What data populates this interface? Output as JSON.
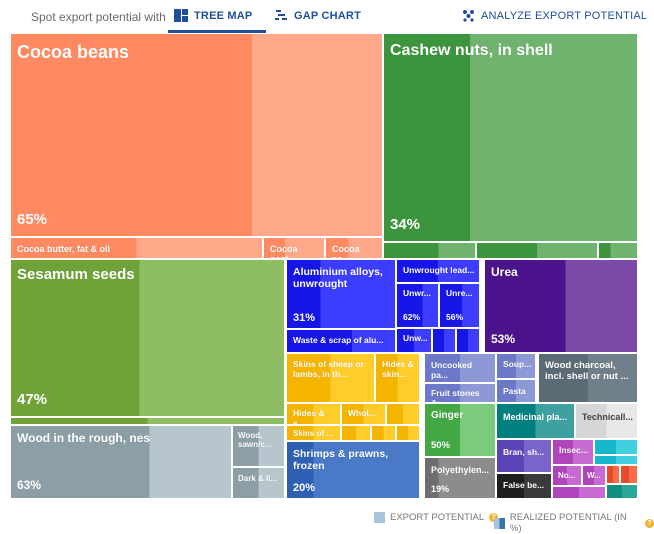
{
  "header": {
    "spot_label": "Spot export potential with",
    "tab_treemap": "TREE MAP",
    "tab_gap": "GAP CHART",
    "analyze": "ANALYZE EXPORT POTENTIAL"
  },
  "legend": {
    "export_potential": "EXPORT POTENTIAL",
    "realized_potential": "REALIZED POTENTIAL (IN %)"
  },
  "cells": {
    "cocoa_beans": {
      "label": "Cocoa beans",
      "pct": "65%",
      "realized": 0.65,
      "light": "#ffa98a",
      "dark": "#ff8a62"
    },
    "cocoa_butter": {
      "label": "Cocoa butter, fat & oil",
      "light": "#ffa98a",
      "dark": "#ff8a62"
    },
    "cocoa_paste": {
      "label": "Cocoa past...",
      "light": "#ffa98a",
      "dark": "#ff8a62"
    },
    "cocoa_powder": {
      "label": "Cocoa pa...",
      "light": "#ffa98a",
      "dark": "#ff8a62"
    },
    "cashew": {
      "label": "Cashew nuts, in shell",
      "pct": "34%",
      "realized": 0.34,
      "light": "#6fb36f",
      "dark": "#3c953c"
    },
    "sesamum": {
      "label": "Sesamum seeds",
      "pct": "47%",
      "realized": 0.47,
      "light": "#8fbd63",
      "dark": "#6fa33a"
    },
    "wood_rough": {
      "label": "Wood in the rough, nes",
      "pct": "63%",
      "realized": 0.63,
      "light": "#b7c6cc",
      "dark": "#8c9fa7"
    },
    "wood_sawn": {
      "label": "Wood, sawn/c...",
      "light": "#b7c6cc",
      "dark": "#8c9fa7"
    },
    "dark_li": {
      "label": "Dark & li...",
      "light": "#b7c6cc",
      "dark": "#8c9fa7"
    },
    "aluminium": {
      "label": "Aluminium alloys, unwrought",
      "pct": "31%",
      "realized": 0.31,
      "light": "#3d3dff",
      "dark": "#1616e6"
    },
    "waste_alu": {
      "label": "Waste & scrap of alu...",
      "light": "#3d3dff",
      "dark": "#1616e6"
    },
    "unwrought_lead": {
      "label": "Unwrought lead...",
      "light": "#3d3dff",
      "dark": "#1616e6"
    },
    "unwr1": {
      "label": "Unwr...",
      "pct": "62%",
      "realized": 0.62,
      "light": "#3d3dff",
      "dark": "#1616e6"
    },
    "unre": {
      "label": "Unre...",
      "pct": "56%",
      "realized": 0.56,
      "light": "#3d3dff",
      "dark": "#1616e6"
    },
    "unw": {
      "label": "Unw...",
      "light": "#3d3dff",
      "dark": "#1616e6"
    },
    "urea": {
      "label": "Urea",
      "pct": "53%",
      "realized": 0.53,
      "light": "#7b4aa8",
      "dark": "#4b148c"
    },
    "skins": {
      "label": "Skins of sheep or lambs, in th...",
      "light": "#ffcc2a",
      "dark": "#f4b400"
    },
    "hides1": {
      "label": "Hides & skin...",
      "light": "#ffcc2a",
      "dark": "#f4b400"
    },
    "hides2": {
      "label": "Hides & s...",
      "light": "#ffcc2a",
      "dark": "#f4b400"
    },
    "whol": {
      "label": "Whol...",
      "light": "#ffcc2a",
      "dark": "#f4b400"
    },
    "skins2": {
      "label": "Skins of ...",
      "light": "#ffcc2a",
      "dark": "#f4b400"
    },
    "shrimps": {
      "label": "Shrimps & prawns, frozen",
      "pct": "20%",
      "realized": 0.2,
      "light": "#4a79c8",
      "dark": "#2f5fb3"
    },
    "uncooked": {
      "label": "Uncooked pa...",
      "light": "#8d98d6",
      "dark": "#6c79c8"
    },
    "soup": {
      "label": "Soup...",
      "light": "#8d98d6",
      "dark": "#6c79c8"
    },
    "fruit": {
      "label": "Fruit stones &...",
      "light": "#8d98d6",
      "dark": "#6c79c8"
    },
    "pasta": {
      "label": "Pasta",
      "light": "#8d98d6",
      "dark": "#6c79c8"
    },
    "charcoal": {
      "label": "Wood charcoal, incl. shell or nut ...",
      "light": "#70808a",
      "dark": "#5a6b75"
    },
    "ginger": {
      "label": "Ginger",
      "pct": "50%",
      "realized": 0.5,
      "light": "#7ccb7c",
      "dark": "#43a743"
    },
    "polyeth": {
      "label": "Polyethylen...",
      "pct": "19%",
      "realized": 0.19,
      "light": "#8c8c8c",
      "dark": "#6e6e6e"
    },
    "medicinal": {
      "label": "Medicinal pla...",
      "light": "#3ea1a1",
      "dark": "#007f7f"
    },
    "technical": {
      "label": "Technicall...",
      "light": "#e8e8e8",
      "dark": "#d6d6d6"
    },
    "bran": {
      "label": "Bran, sh...",
      "light": "#7a63c9",
      "dark": "#5b44b6"
    },
    "insec": {
      "label": "Insec...",
      "light": "#c86ad1",
      "dark": "#b044bd"
    },
    "false_be": {
      "label": "False be...",
      "light": "#3a3a3a",
      "dark": "#1e1e1e"
    },
    "no": {
      "label": "No...",
      "light": "#c86ad1",
      "dark": "#b044bd"
    },
    "w": {
      "label": "W...",
      "light": "#c86ad1",
      "dark": "#b044bd"
    }
  }
}
